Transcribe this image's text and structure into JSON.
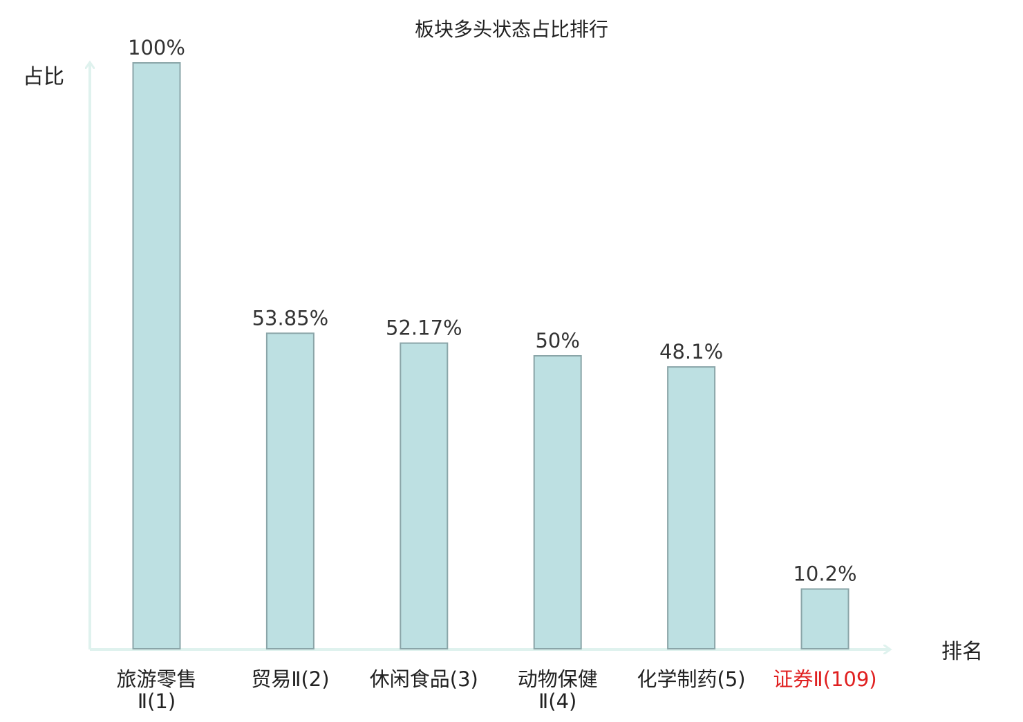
{
  "chart_data": {
    "type": "bar",
    "title": "板块多头状态占比排行",
    "ylabel": "占比",
    "xlabel": "排名",
    "ylim": [
      0,
      100
    ],
    "grid": false,
    "categories": [
      [
        "旅游零售",
        "Ⅱ(1)"
      ],
      [
        "贸易Ⅱ(2)"
      ],
      [
        "休闲食品(3)"
      ],
      [
        "动物保健",
        "Ⅱ(4)"
      ],
      [
        "化学制药(5)"
      ],
      [
        "证券Ⅱ(109)"
      ]
    ],
    "values": [
      100,
      53.85,
      52.17,
      50,
      48.1,
      10.2
    ],
    "value_labels": [
      "100%",
      "53.85%",
      "52.17%",
      "50%",
      "48.1%",
      "10.2%"
    ],
    "highlight_index": 5,
    "colors": {
      "bar_fill": "#bde0e2",
      "bar_stroke": "#8aa5a8",
      "axis": "#dff2ee",
      "text": "#222222",
      "value_text": "#333333",
      "highlight": "#e02020"
    }
  }
}
